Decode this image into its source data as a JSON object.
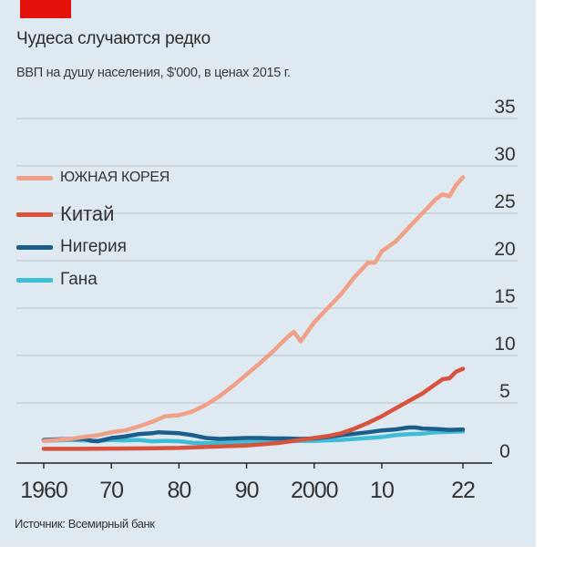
{
  "header": {
    "title": "Чудеса случаются редко",
    "subtitle": "ВВП на душу населения, $'000, в ценах 2015 г."
  },
  "footer": {
    "source": "Источник: Всемирный банк"
  },
  "colors": {
    "background": "#dfe9f1",
    "brand_red": "#e3120b",
    "korea": "#f0a087",
    "china": "#d8533e",
    "nigeria": "#1b5e8c",
    "ghana": "#3fbcd6",
    "grid": "#c2c9d0",
    "axis": "#222222"
  },
  "legend": [
    {
      "label": "ЮЖНАЯ КОРЕЯ",
      "series": "korea"
    },
    {
      "label": "Китай",
      "series": "china"
    },
    {
      "label": "Нигерия",
      "series": "nigeria"
    },
    {
      "label": "Гана",
      "series": "ghana"
    }
  ],
  "chart_data": {
    "type": "line",
    "title": "Чудеса случаются редко",
    "subtitle": "ВВП на душу населения, $'000, в ценах 2015 г.",
    "xlabel": "",
    "ylabel": "",
    "xlim": [
      1960,
      2022
    ],
    "ylim": [
      0,
      35
    ],
    "y_ticks": [
      0,
      5,
      10,
      15,
      20,
      25,
      30,
      35
    ],
    "y_axis_position": "right",
    "x_ticks": [
      {
        "value": 1960,
        "label": "1960"
      },
      {
        "value": 1970,
        "label": "70"
      },
      {
        "value": 1980,
        "label": "80"
      },
      {
        "value": 1990,
        "label": "90"
      },
      {
        "value": 2000,
        "label": "2000"
      },
      {
        "value": 2010,
        "label": "10"
      },
      {
        "value": 2022,
        "label": "22"
      }
    ],
    "grid": true,
    "legend_position": "top-left",
    "series": [
      {
        "key": "korea",
        "name": "ЮЖНАЯ КОРЕЯ",
        "points": [
          [
            1960,
            1.0
          ],
          [
            1962,
            1.1
          ],
          [
            1964,
            1.2
          ],
          [
            1966,
            1.4
          ],
          [
            1968,
            1.6
          ],
          [
            1970,
            1.9
          ],
          [
            1972,
            2.1
          ],
          [
            1974,
            2.5
          ],
          [
            1976,
            3.0
          ],
          [
            1978,
            3.6
          ],
          [
            1980,
            3.7
          ],
          [
            1982,
            4.1
          ],
          [
            1984,
            4.8
          ],
          [
            1986,
            5.7
          ],
          [
            1988,
            6.8
          ],
          [
            1990,
            8.0
          ],
          [
            1992,
            9.2
          ],
          [
            1994,
            10.5
          ],
          [
            1996,
            11.9
          ],
          [
            1997,
            12.5
          ],
          [
            1998,
            11.5
          ],
          [
            2000,
            13.5
          ],
          [
            2002,
            15.0
          ],
          [
            2004,
            16.5
          ],
          [
            2006,
            18.3
          ],
          [
            2008,
            19.8
          ],
          [
            2009,
            19.8
          ],
          [
            2010,
            21.0
          ],
          [
            2012,
            22.0
          ],
          [
            2014,
            23.5
          ],
          [
            2016,
            25.0
          ],
          [
            2018,
            26.5
          ],
          [
            2019,
            27.0
          ],
          [
            2020,
            26.8
          ],
          [
            2021,
            28.0
          ],
          [
            2022,
            28.8
          ]
        ]
      },
      {
        "key": "china",
        "name": "Китай",
        "points": [
          [
            1960,
            0.15
          ],
          [
            1965,
            0.15
          ],
          [
            1970,
            0.18
          ],
          [
            1975,
            0.2
          ],
          [
            1980,
            0.25
          ],
          [
            1985,
            0.38
          ],
          [
            1990,
            0.5
          ],
          [
            1995,
            0.8
          ],
          [
            2000,
            1.3
          ],
          [
            2002,
            1.5
          ],
          [
            2004,
            1.8
          ],
          [
            2006,
            2.3
          ],
          [
            2008,
            2.9
          ],
          [
            2010,
            3.6
          ],
          [
            2012,
            4.4
          ],
          [
            2014,
            5.2
          ],
          [
            2016,
            6.0
          ],
          [
            2018,
            7.0
          ],
          [
            2019,
            7.5
          ],
          [
            2020,
            7.6
          ],
          [
            2021,
            8.3
          ],
          [
            2022,
            8.6
          ]
        ]
      },
      {
        "key": "nigeria",
        "name": "Нигерия",
        "points": [
          [
            1960,
            1.1
          ],
          [
            1962,
            1.15
          ],
          [
            1964,
            1.2
          ],
          [
            1966,
            1.2
          ],
          [
            1967,
            1.0
          ],
          [
            1968,
            0.95
          ],
          [
            1970,
            1.3
          ],
          [
            1972,
            1.45
          ],
          [
            1974,
            1.7
          ],
          [
            1976,
            1.8
          ],
          [
            1977,
            1.9
          ],
          [
            1980,
            1.8
          ],
          [
            1982,
            1.6
          ],
          [
            1984,
            1.3
          ],
          [
            1986,
            1.2
          ],
          [
            1988,
            1.25
          ],
          [
            1990,
            1.3
          ],
          [
            1992,
            1.3
          ],
          [
            1994,
            1.25
          ],
          [
            1996,
            1.25
          ],
          [
            1998,
            1.2
          ],
          [
            2000,
            1.25
          ],
          [
            2002,
            1.4
          ],
          [
            2004,
            1.6
          ],
          [
            2006,
            1.75
          ],
          [
            2008,
            1.9
          ],
          [
            2010,
            2.1
          ],
          [
            2012,
            2.2
          ],
          [
            2014,
            2.4
          ],
          [
            2015,
            2.4
          ],
          [
            2016,
            2.3
          ],
          [
            2018,
            2.25
          ],
          [
            2020,
            2.15
          ],
          [
            2022,
            2.2
          ]
        ]
      },
      {
        "key": "ghana",
        "name": "Гана",
        "points": [
          [
            1960,
            1.0
          ],
          [
            1962,
            1.05
          ],
          [
            1964,
            1.1
          ],
          [
            1966,
            1.05
          ],
          [
            1968,
            1.0
          ],
          [
            1970,
            1.1
          ],
          [
            1972,
            1.05
          ],
          [
            1974,
            1.1
          ],
          [
            1976,
            0.95
          ],
          [
            1978,
            1.0
          ],
          [
            1980,
            0.95
          ],
          [
            1982,
            0.8
          ],
          [
            1984,
            0.75
          ],
          [
            1986,
            0.8
          ],
          [
            1988,
            0.85
          ],
          [
            1990,
            0.85
          ],
          [
            1992,
            0.9
          ],
          [
            1994,
            0.9
          ],
          [
            1996,
            0.95
          ],
          [
            1998,
            1.0
          ],
          [
            2000,
            1.0
          ],
          [
            2002,
            1.05
          ],
          [
            2004,
            1.1
          ],
          [
            2006,
            1.2
          ],
          [
            2008,
            1.3
          ],
          [
            2010,
            1.4
          ],
          [
            2012,
            1.6
          ],
          [
            2014,
            1.7
          ],
          [
            2016,
            1.75
          ],
          [
            2018,
            1.9
          ],
          [
            2020,
            1.95
          ],
          [
            2022,
            2.0
          ]
        ]
      }
    ]
  }
}
